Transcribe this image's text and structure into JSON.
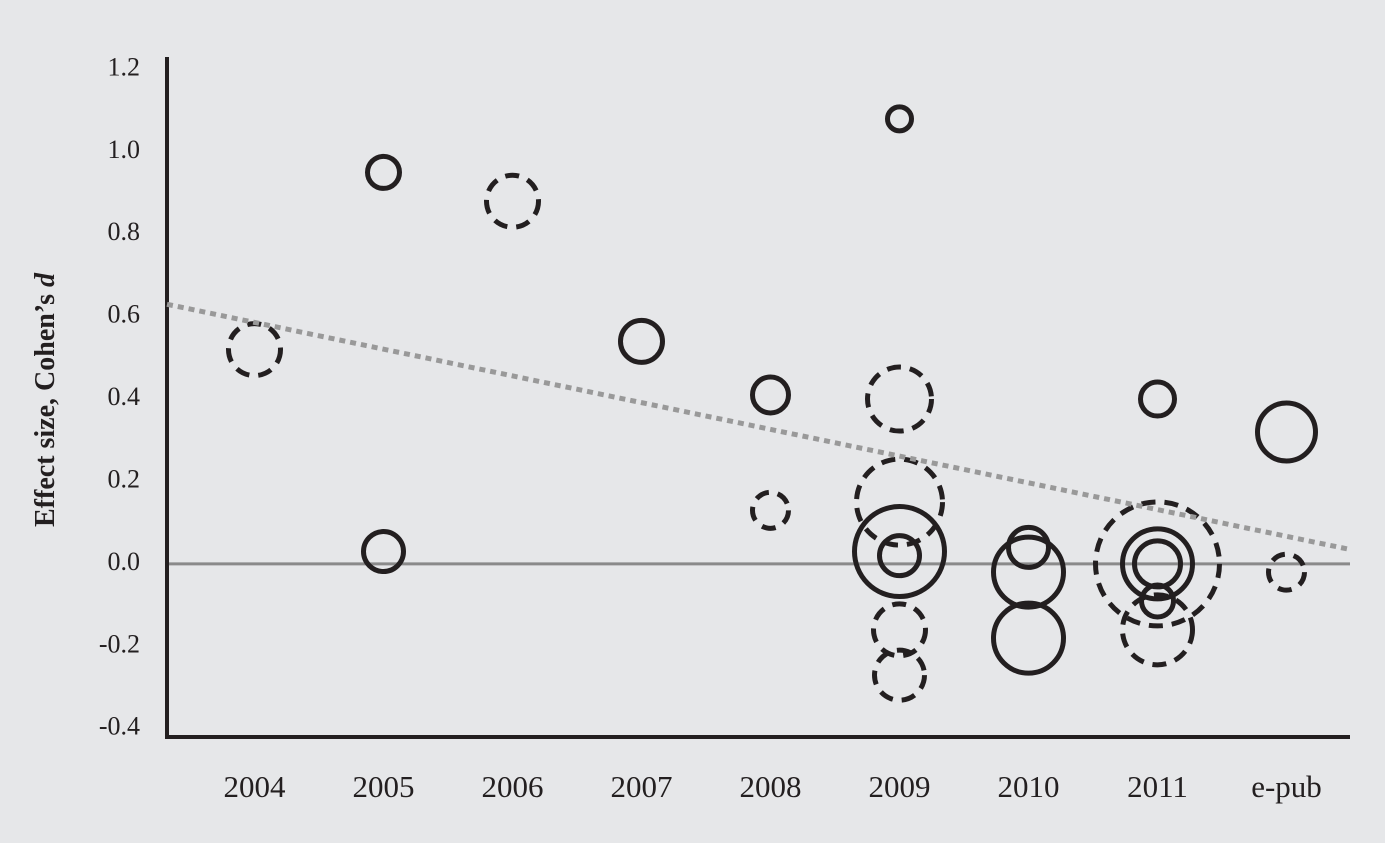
{
  "chart_data": {
    "type": "bubble",
    "ylabel": {
      "text": "Effect size, Cohen’s",
      "variable": "d"
    },
    "categories": [
      "2004",
      "2005",
      "2006",
      "2007",
      "2008",
      "2009",
      "2010",
      "2011",
      "e-pub"
    ],
    "x": [
      "2004",
      "2005",
      "2005",
      "2006",
      "2007",
      "2008",
      "2008",
      "2009",
      "2009",
      "2009",
      "2009",
      "2009",
      "2009",
      "2009",
      "2010",
      "2010",
      "2010",
      "2011",
      "2011",
      "2011",
      "2011",
      "2011",
      "2011",
      "e-pub",
      "e-pub"
    ],
    "values": [
      0.52,
      0.95,
      0.03,
      0.88,
      0.54,
      0.41,
      0.13,
      1.08,
      0.4,
      0.15,
      0.03,
      0.02,
      -0.16,
      -0.27,
      0.04,
      -0.02,
      -0.18,
      0.4,
      0.0,
      0.0,
      0.0,
      -0.09,
      -0.16,
      0.32,
      -0.02
    ],
    "sizes": [
      26,
      16,
      20,
      26,
      21,
      18,
      18,
      12,
      32,
      43,
      45,
      20,
      26,
      25,
      20,
      35,
      35,
      17,
      62,
      35,
      23,
      16,
      35,
      29,
      18
    ],
    "dashed": [
      true,
      false,
      false,
      true,
      false,
      false,
      true,
      false,
      true,
      true,
      false,
      false,
      true,
      true,
      false,
      false,
      false,
      false,
      true,
      false,
      false,
      false,
      true,
      false,
      true
    ],
    "color": "#231f20",
    "trendline": {
      "values": [
        0.63,
        0.035
      ],
      "color": "#999999"
    },
    "ylim": [
      -0.42,
      1.23
    ],
    "yticks": [
      -0.4,
      -0.2,
      {
        "value": 0,
        "label": "0.0"
      },
      0.2,
      0.4,
      0.6,
      0.8,
      {
        "value": 1,
        "label": "1.0"
      },
      1.2
    ]
  }
}
